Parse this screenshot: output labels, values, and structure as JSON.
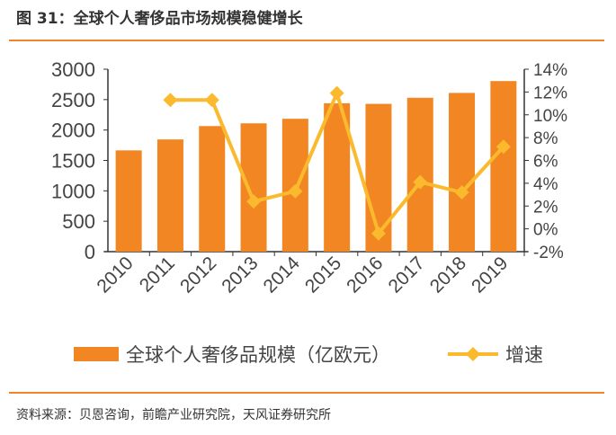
{
  "title": "图 31：全球个人奢侈品市场规模稳健增长",
  "source": "资料来源：贝恩咨询，前瞻产业研究院，天风证券研究所",
  "chart_data": {
    "type": "bar",
    "categories": [
      "2010",
      "2011",
      "2012",
      "2013",
      "2014",
      "2015",
      "2016",
      "2017",
      "2018",
      "2019"
    ],
    "series": [
      {
        "name": "全球个人奢侈品规模（亿欧元）",
        "type": "bar",
        "axis": "left",
        "color": "#f28622",
        "values": [
          1665,
          1845,
          2065,
          2110,
          2185,
          2440,
          2430,
          2530,
          2610,
          2805
        ]
      },
      {
        "name": "增速",
        "type": "line",
        "axis": "right",
        "color": "#fbb92e",
        "marker": "diamond",
        "values": [
          null,
          11.3,
          11.3,
          2.4,
          3.3,
          11.9,
          -0.4,
          4.1,
          3.2,
          7.2
        ]
      }
    ],
    "ylim_left": [
      0,
      3000
    ],
    "yticks_left": [
      "0",
      "500",
      "1000",
      "1500",
      "2000",
      "2500",
      "3000"
    ],
    "ylim_right": [
      -2,
      14
    ],
    "yticks_right": [
      "-2%",
      "0%",
      "2%",
      "4%",
      "6%",
      "8%",
      "10%",
      "12%",
      "14%"
    ],
    "legend": "bottom",
    "grid": false
  }
}
